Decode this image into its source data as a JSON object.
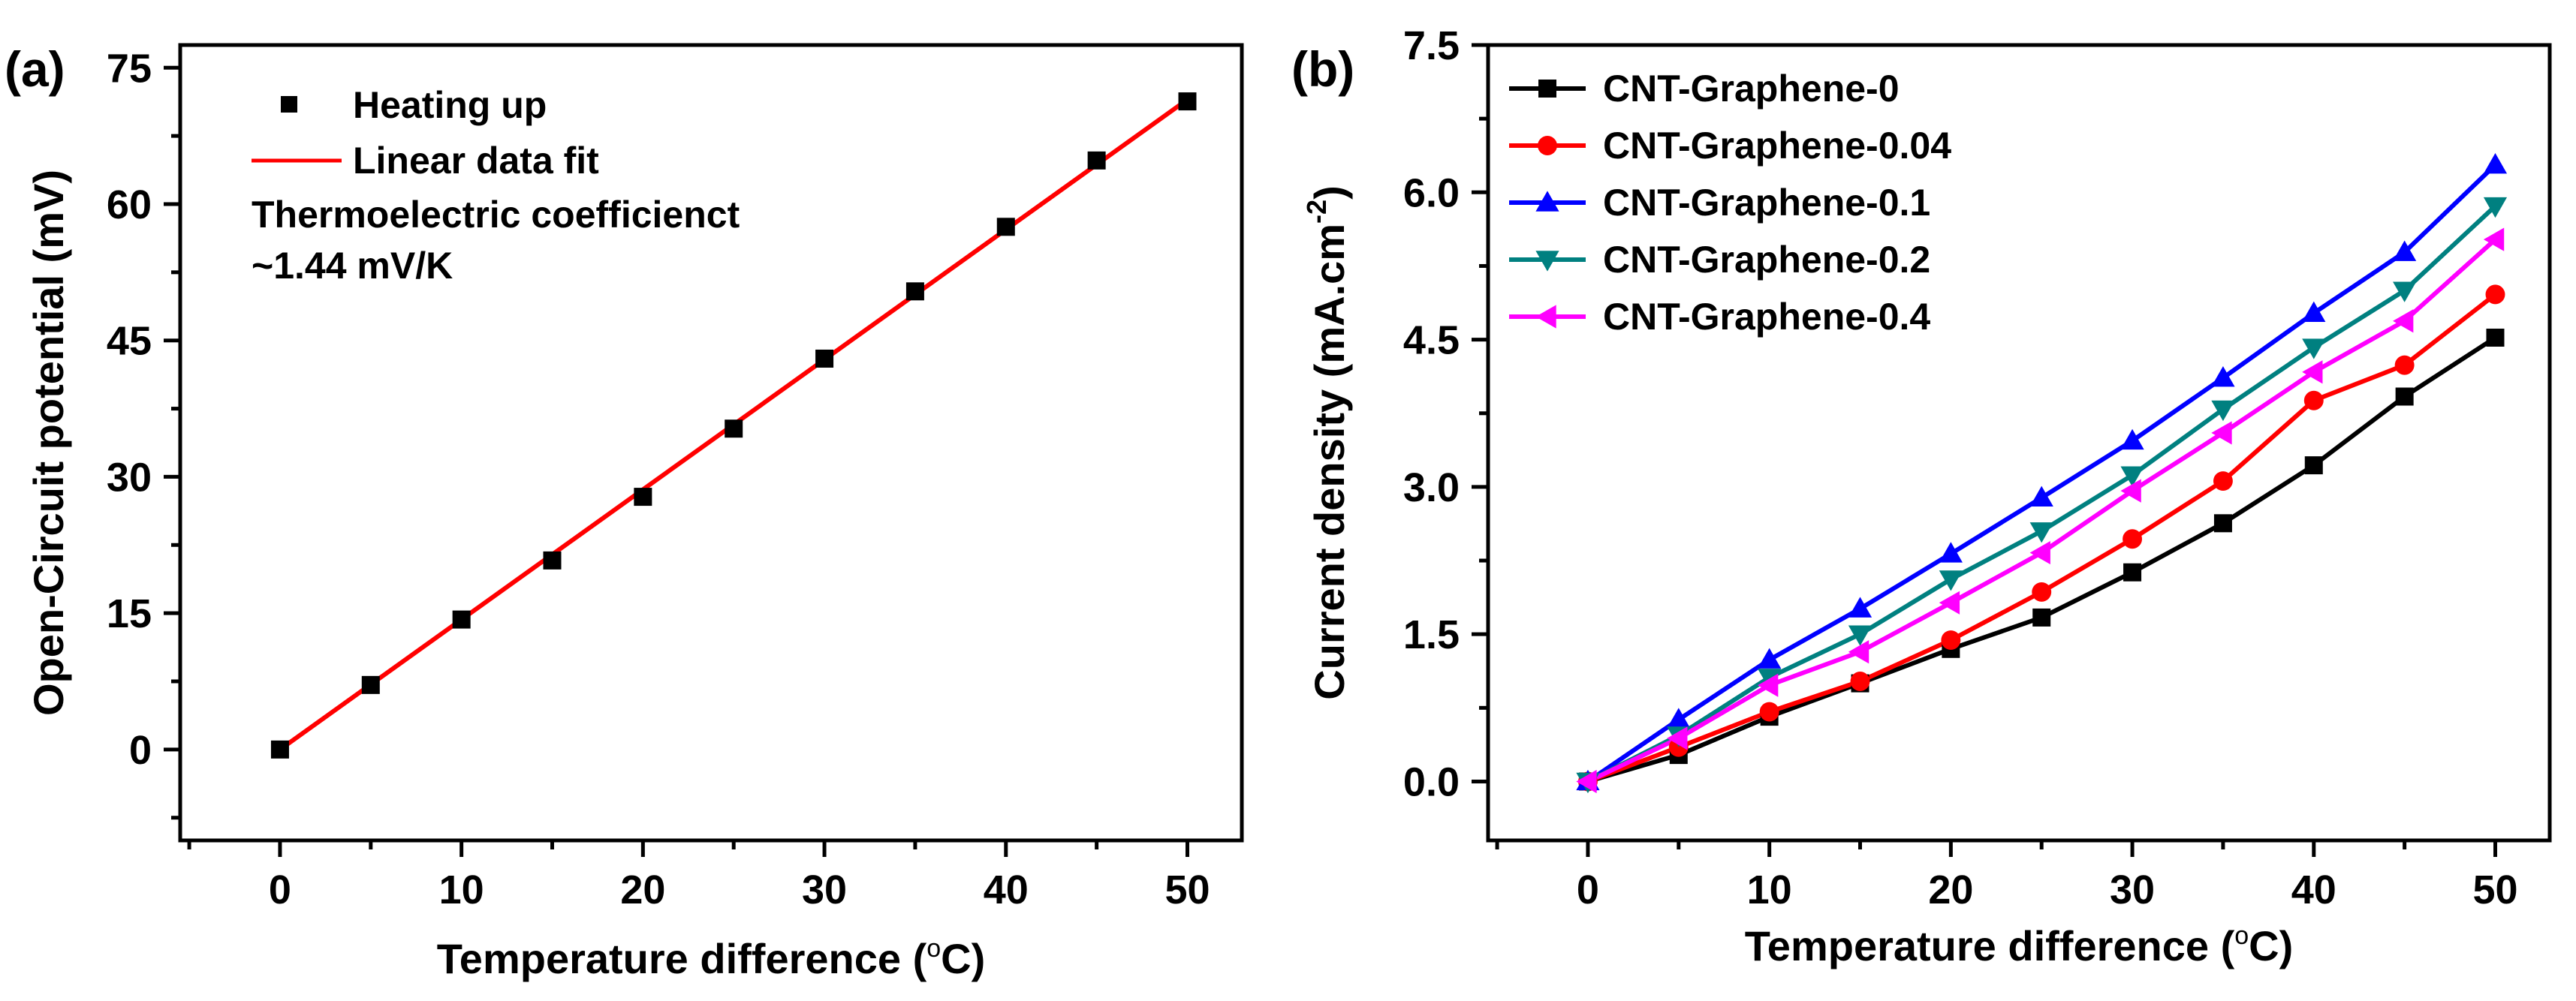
{
  "chart_data": [
    {
      "type": "scatter",
      "panel_label": "(a)",
      "xlabel": "Temperature difference (",
      "xlabel_unit": "C)",
      "xlabel_degree": "o",
      "ylabel": "Open-Circuit potential (mV)",
      "xlim": [
        -5.5,
        53
      ],
      "ylim": [
        -10,
        77.5
      ],
      "xticks": [
        0,
        10,
        20,
        30,
        40,
        50
      ],
      "yticks": [
        0,
        15,
        30,
        45,
        60,
        75
      ],
      "x_minor_ticks": [
        -5,
        5,
        15,
        25,
        35,
        45
      ],
      "y_minor_ticks": [
        -7.5,
        7.5,
        22.5,
        37.5,
        52.5,
        67.5
      ],
      "series": [
        {
          "name": "Heating up",
          "kind": "points",
          "marker": "square",
          "color": "#000000",
          "x": [
            0,
            5,
            10,
            15,
            20,
            25,
            30,
            35,
            40,
            45,
            50
          ],
          "y": [
            0,
            7.1,
            14.3,
            20.8,
            27.8,
            35.3,
            43.0,
            50.4,
            57.5,
            64.8,
            71.3
          ]
        },
        {
          "name": "Linear data fit",
          "kind": "line",
          "color": "#ff0000",
          "x": [
            0,
            50
          ],
          "y": [
            0,
            71.5
          ]
        }
      ],
      "annotations": [
        "Thermoelectric coefficienct",
        "~1.44 mV/K"
      ],
      "legend_position": "top-left"
    },
    {
      "type": "line",
      "panel_label": "(b)",
      "xlabel": "Temperature difference (",
      "xlabel_unit": "C)",
      "xlabel_degree": "o",
      "ylabel": "Current density (mA.cm",
      "ylabel_sup": "-2",
      "ylabel_close": ")",
      "xlim": [
        -5.5,
        53
      ],
      "ylim": [
        -0.6,
        7.5
      ],
      "xticks": [
        0,
        10,
        20,
        30,
        40,
        50
      ],
      "yticks": [
        0.0,
        1.5,
        3.0,
        4.5,
        6.0,
        7.5
      ],
      "ytick_labels": [
        "0.0",
        "1.5",
        "3.0",
        "4.5",
        "6.0",
        "7.5"
      ],
      "x_minor_ticks": [
        -5,
        5,
        15,
        25,
        35,
        45
      ],
      "y_minor_ticks": [
        0.75,
        2.25,
        3.75,
        5.25,
        6.75
      ],
      "x": [
        0,
        5,
        10,
        15,
        20,
        25,
        30,
        35,
        40,
        45,
        50
      ],
      "series": [
        {
          "name": "CNT-Graphene-0",
          "marker": "square",
          "color": "#000000",
          "values": [
            0,
            0.27,
            0.66,
            1.0,
            1.35,
            1.67,
            2.13,
            2.63,
            3.22,
            3.92,
            4.52
          ]
        },
        {
          "name": "CNT-Graphene-0.04",
          "marker": "circle",
          "color": "#ff0000",
          "values": [
            0,
            0.35,
            0.71,
            1.02,
            1.44,
            1.93,
            2.47,
            3.06,
            3.88,
            4.24,
            4.96
          ]
        },
        {
          "name": "CNT-Graphene-0.1",
          "marker": "triangle-up",
          "color": "#0000ff",
          "values": [
            0,
            0.63,
            1.24,
            1.76,
            2.32,
            2.89,
            3.47,
            4.11,
            4.77,
            5.39,
            6.28
          ]
        },
        {
          "name": "CNT-Graphene-0.2",
          "marker": "triangle-down",
          "color": "#008080",
          "values": [
            0,
            0.47,
            1.06,
            1.5,
            2.06,
            2.55,
            3.12,
            3.79,
            4.42,
            5.0,
            5.86
          ]
        },
        {
          "name": "CNT-Graphene-0.4",
          "marker": "triangle-left",
          "color": "#ff00ff",
          "values": [
            0,
            0.44,
            0.98,
            1.32,
            1.82,
            2.33,
            2.96,
            3.55,
            4.17,
            4.69,
            5.52
          ]
        }
      ],
      "legend_position": "top-left"
    }
  ]
}
